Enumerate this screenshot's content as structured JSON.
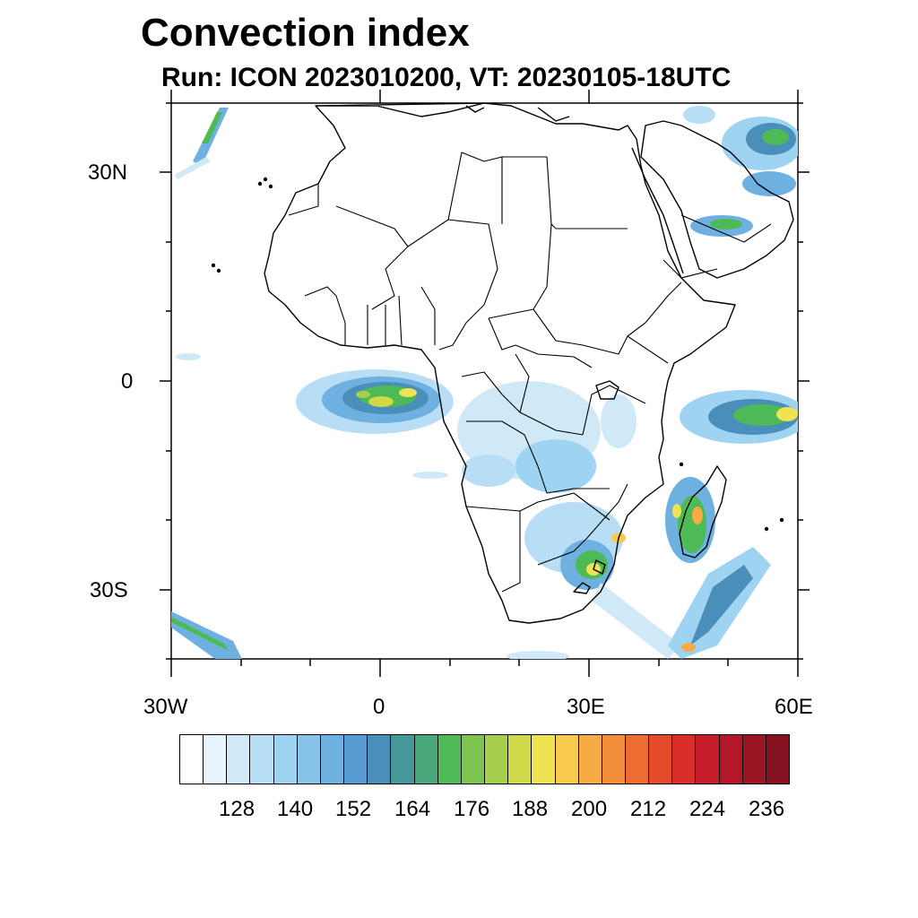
{
  "title": "Convection index",
  "subtitle": "Run: ICON 2023010200,  VT: 20230105-18UTC",
  "axes": {
    "lat_labels": [
      "30N",
      "0",
      "30S"
    ],
    "lon_labels": [
      "30W",
      "0",
      "30E",
      "60E"
    ]
  },
  "colorbar": {
    "labels": [
      "128",
      "140",
      "152",
      "164",
      "176",
      "188",
      "200",
      "212",
      "224",
      "236"
    ],
    "colors": [
      "#ffffff",
      "#e8f4fb",
      "#cfe9f7",
      "#b8def5",
      "#9fd3f2",
      "#88c4ea",
      "#6eb1e1",
      "#569cd3",
      "#4a8fba",
      "#48979a",
      "#4aa97c",
      "#4dba55",
      "#7dc550",
      "#a8cf4c",
      "#d0d94a",
      "#efe253",
      "#f8cb4e",
      "#f7ab44",
      "#f38f3b",
      "#ec6c31",
      "#e54b2b",
      "#d92d2a",
      "#c71e2a",
      "#b2182a",
      "#9c1525",
      "#861120"
    ]
  },
  "convection_areas": [
    {
      "name": "gulf-of-guinea",
      "level": "high"
    },
    {
      "name": "congo-basin",
      "level": "low"
    },
    {
      "name": "southern-africa",
      "level": "high"
    },
    {
      "name": "madagascar",
      "level": "high"
    },
    {
      "name": "western-indian-ocean",
      "level": "high"
    },
    {
      "name": "arabian-gulf",
      "level": "medium"
    },
    {
      "name": "south-west-indian-ocean",
      "level": "medium"
    }
  ]
}
